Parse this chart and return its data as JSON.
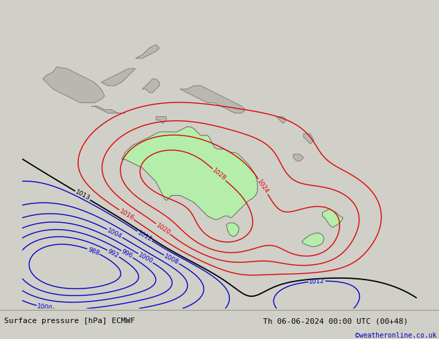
{
  "title_left": "Surface pressure [hPa] ECMWF",
  "title_right": "Th 06-06-2024 00:00 UTC (00+48)",
  "copyright": "©weatheronline.co.uk",
  "bg_color": "#d0cfc8",
  "ocean_color": "#c8c7c0",
  "australia_green": "#b4eeaa",
  "nz_green": "#b4eeaa",
  "land_gray": "#b8b8b0",
  "red_color": "#dd0000",
  "blue_color": "#0000cc",
  "black_color": "#000000",
  "bottom_bar_color": "#e0dfda",
  "bottom_text_color": "#000000",
  "copyright_color": "#0000bb",
  "font_size_bottom": 8,
  "map_lon_min": 85,
  "map_lon_max": 200,
  "map_lat_min": -65,
  "map_lat_max": 25
}
